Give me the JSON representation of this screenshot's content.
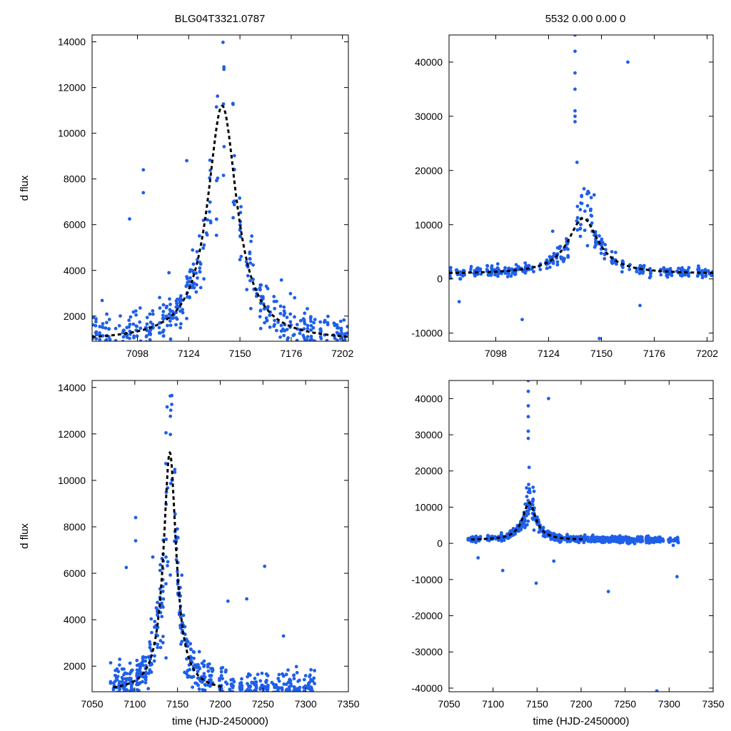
{
  "titles": {
    "left": "BLG04T3321.0787",
    "right": "5532  0.00  0.00  0"
  },
  "ylabel": "d flux",
  "xlabel": "time (HJD-2450000)",
  "colors": {
    "points": "#1f5fe8",
    "model": "#000000",
    "frame": "#000000"
  },
  "chart_data": [
    {
      "id": "top-left",
      "type": "scatter",
      "xlim": [
        7075,
        7205
      ],
      "ylim": [
        900,
        14300
      ],
      "xticks": [
        7098,
        7124,
        7150,
        7176,
        7202
      ],
      "yticks": [
        2000,
        4000,
        6000,
        8000,
        10000,
        12000,
        14000
      ],
      "ylabel": "d flux",
      "xlabel": "",
      "model": {
        "t0": 7141,
        "peak": 11200,
        "base": 900,
        "tau": 9
      },
      "outliers": [
        [
          7094,
          6250
        ],
        [
          7101,
          8400
        ],
        [
          7101,
          7400
        ],
        [
          7123,
          8800
        ],
        [
          7114,
          3900
        ],
        [
          7156,
          5500
        ]
      ],
      "seed": 11
    },
    {
      "id": "top-right",
      "type": "scatter",
      "xlim": [
        7075,
        7205
      ],
      "ylim": [
        -11500,
        45000
      ],
      "xticks": [
        7098,
        7124,
        7150,
        7176,
        7202
      ],
      "yticks": [
        -10000,
        0,
        10000,
        20000,
        30000,
        40000
      ],
      "ylabel": "",
      "xlabel": "",
      "model": {
        "t0": 7141,
        "peak": 11200,
        "base": 900,
        "tau": 9
      },
      "outliers": [
        [
          7163,
          40000
        ],
        [
          7137,
          45000
        ],
        [
          7137,
          42000
        ],
        [
          7137,
          38000
        ],
        [
          7137,
          35000
        ],
        [
          7137,
          31000
        ],
        [
          7137,
          30000
        ],
        [
          7137,
          29000
        ],
        [
          7138,
          21500
        ],
        [
          7111,
          -7500
        ],
        [
          7080,
          -4200
        ],
        [
          7149,
          -11000
        ],
        [
          7169,
          -4900
        ],
        [
          7126,
          8800
        ]
      ],
      "seed": 23
    },
    {
      "id": "bottom-left",
      "type": "scatter",
      "xlim": [
        7050,
        7350
      ],
      "ylim": [
        900,
        14300
      ],
      "xticks": [
        7050,
        7100,
        7150,
        7200,
        7250,
        7300,
        7350
      ],
      "yticks": [
        2000,
        4000,
        6000,
        8000,
        10000,
        12000,
        14000
      ],
      "ylabel": "d flux",
      "xlabel": "time (HJD-2450000)",
      "model": {
        "t0": 7141,
        "peak": 11200,
        "base": 900,
        "tau": 9
      },
      "outliers": [
        [
          7090,
          6250
        ],
        [
          7101,
          8400
        ],
        [
          7101,
          7400
        ],
        [
          7209,
          4800
        ],
        [
          7231,
          4900
        ],
        [
          7252,
          6300
        ],
        [
          7274,
          3300
        ],
        [
          7121,
          6700
        ]
      ],
      "seed": 37
    },
    {
      "id": "bottom-right",
      "type": "scatter",
      "xlim": [
        7050,
        7350
      ],
      "ylim": [
        -41000,
        45000
      ],
      "xticks": [
        7050,
        7100,
        7150,
        7200,
        7250,
        7300,
        7350
      ],
      "yticks": [
        -40000,
        -30000,
        -20000,
        -10000,
        0,
        10000,
        20000,
        30000,
        40000
      ],
      "ylabel": "",
      "xlabel": "time (HJD-2450000)",
      "model": {
        "t0": 7141,
        "peak": 11200,
        "base": 900,
        "tau": 9
      },
      "outliers": [
        [
          7163,
          40000
        ],
        [
          7140,
          45000
        ],
        [
          7140,
          42000
        ],
        [
          7140,
          38000
        ],
        [
          7140,
          35000
        ],
        [
          7140,
          31000
        ],
        [
          7140,
          29000
        ],
        [
          7141,
          21000
        ],
        [
          7111,
          -7500
        ],
        [
          7149,
          -11000
        ],
        [
          7231,
          -13300
        ],
        [
          7309,
          -9200
        ],
        [
          7286,
          -40800
        ],
        [
          7083,
          -4000
        ],
        [
          7169,
          -4900
        ]
      ],
      "seed": 53
    }
  ]
}
